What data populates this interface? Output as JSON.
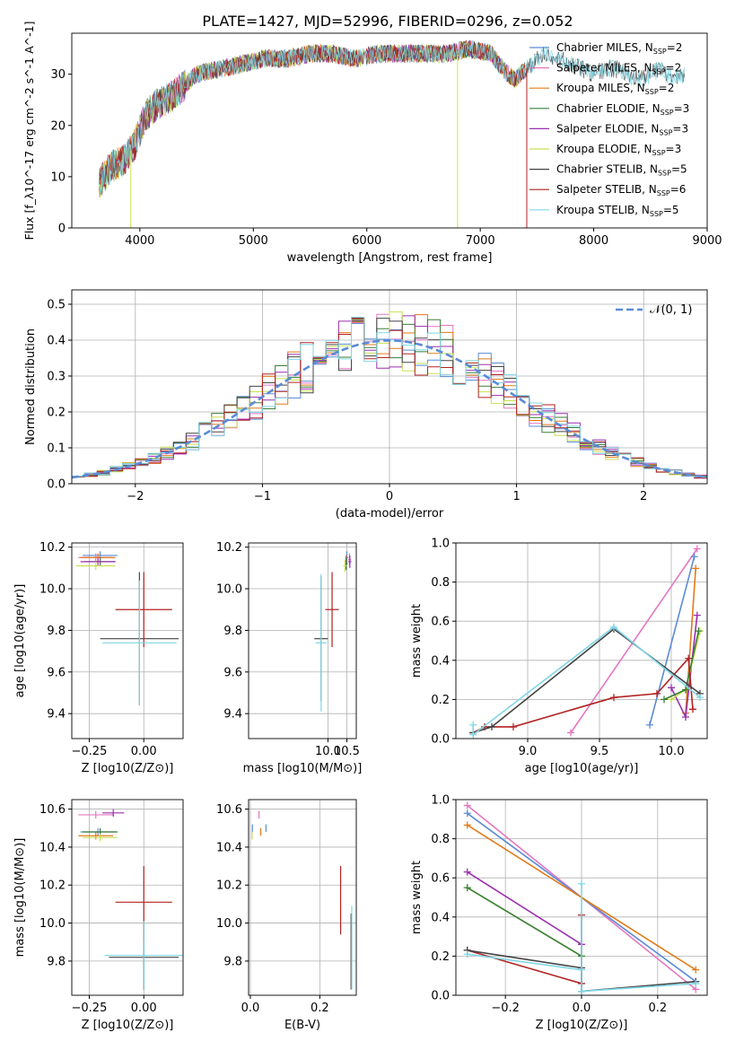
{
  "figure_title": "PLATE=1427, MJD=52996, FIBERID=0296, z=0.052",
  "colors": {
    "chabrier_miles": "#5b8bd6",
    "salpeter_miles": "#e377c2",
    "kroupa_miles": "#e07b1a",
    "chabrier_elodie": "#3a7f3a",
    "salpeter_elodie": "#9b2fae",
    "kroupa_elodie": "#c8e050",
    "chabrier_stelib": "#444444",
    "salpeter_stelib": "#b22222",
    "kroupa_stelib": "#7fd6e6",
    "gaussian": "#5b8bd6",
    "grid": "#b0b0b0"
  },
  "chart_data": [
    {
      "id": "spectrum",
      "type": "line",
      "xlabel": "wavelength [Angstrom, rest frame]",
      "ylabel": "Flux [f_λ10^-17 erg cm^-2 s^-1 A^-1]",
      "xlim": [
        3400,
        9000
      ],
      "ylim": [
        0,
        38
      ],
      "xticks": [
        "4000",
        "5000",
        "6000",
        "7000",
        "8000",
        "9000"
      ],
      "yticks": [
        "0",
        "10",
        "20",
        "30"
      ],
      "grid": false,
      "legend_position": "right",
      "legend": [
        {
          "label": "Chabrier MILES, N",
          "sub": "SSP",
          "tail": "=2",
          "color_key": "chabrier_miles"
        },
        {
          "label": "Salpeter MILES, N",
          "sub": "SSP",
          "tail": "=2",
          "color_key": "salpeter_miles"
        },
        {
          "label": "Kroupa MILES, N",
          "sub": "SSP",
          "tail": "=2",
          "color_key": "kroupa_miles"
        },
        {
          "label": "Chabrier ELODIE, N",
          "sub": "SSP",
          "tail": "=3",
          "color_key": "chabrier_elodie"
        },
        {
          "label": "Salpeter ELODIE, N",
          "sub": "SSP",
          "tail": "=3",
          "color_key": "salpeter_elodie"
        },
        {
          "label": "Kroupa ELODIE, N",
          "sub": "SSP",
          "tail": "=3",
          "color_key": "kroupa_elodie"
        },
        {
          "label": "Chabrier STELIB, N",
          "sub": "SSP",
          "tail": "=5",
          "color_key": "chabrier_stelib"
        },
        {
          "label": "Salpeter STELIB, N",
          "sub": "SSP",
          "tail": "=6",
          "color_key": "salpeter_stelib"
        },
        {
          "label": "Kroupa STELIB, N",
          "sub": "SSP",
          "tail": "=5",
          "color_key": "kroupa_stelib"
        }
      ],
      "envelope": {
        "wavelength": [
          3650,
          3750,
          3850,
          3950,
          4050,
          4150,
          4300,
          4500,
          4700,
          4900,
          5100,
          5300,
          5500,
          5700,
          5900,
          6100,
          6300,
          6500,
          6700,
          6900,
          7100,
          7200,
          7300,
          7400,
          7500,
          7600,
          7700,
          7800,
          7900,
          8000,
          8100,
          8200,
          8300,
          8400,
          8500,
          8600,
          8700,
          8800
        ],
        "flux": [
          9,
          12,
          13,
          16,
          22,
          24,
          26,
          30,
          31,
          32,
          33,
          33,
          34,
          34,
          33,
          34,
          34,
          34,
          34,
          35,
          34,
          31,
          29,
          31,
          33,
          34,
          33,
          32,
          31,
          30,
          31,
          31,
          30,
          29,
          30,
          31,
          29,
          30
        ]
      },
      "spikes": [
        {
          "wavelength": 3920,
          "to": 0
        },
        {
          "wavelength": 6800,
          "to": 0
        },
        {
          "wavelength": 7410,
          "to": 0
        }
      ]
    },
    {
      "id": "residuals",
      "type": "line",
      "xlabel": "(data-model)/error",
      "ylabel": "Normed distribution",
      "xlim": [
        -2.5,
        2.5
      ],
      "ylim": [
        0,
        0.54
      ],
      "xticks": [
        "−2",
        "−1",
        "0",
        "1",
        "2"
      ],
      "yticks": [
        "0.0",
        "0.1",
        "0.2",
        "0.3",
        "0.4",
        "0.5"
      ],
      "grid": true,
      "legend_position": "top-right",
      "legend_label": "𝒩(0, 1)",
      "gaussian": {
        "mean": 0,
        "sigma": 1
      }
    },
    {
      "id": "age-vs-Z",
      "type": "scatter",
      "xlabel": "Z [log10(Z/Z⊙)]",
      "ylabel": "age  [log10(age/yr)]",
      "xlim": [
        -0.33,
        0.18
      ],
      "ylim": [
        9.28,
        10.22
      ],
      "xticks": [
        "−0.25",
        "0.00"
      ],
      "yticks": [
        "9.4",
        "9.6",
        "9.8",
        "10.0",
        "10.2"
      ],
      "grid": true,
      "errorbars": [
        {
          "color_key": "chabrier_miles",
          "x": -0.2,
          "xerr": 0.08,
          "y": 10.16,
          "yerr": 0.02
        },
        {
          "color_key": "salpeter_miles",
          "x": -0.22,
          "xerr": 0.08,
          "y": 10.15,
          "yerr": 0.02
        },
        {
          "color_key": "kroupa_miles",
          "x": -0.21,
          "xerr": 0.08,
          "y": 10.15,
          "yerr": 0.02
        },
        {
          "color_key": "chabrier_elodie",
          "x": -0.2,
          "xerr": 0.07,
          "y": 10.13,
          "yerr": 0.02
        },
        {
          "color_key": "salpeter_elodie",
          "x": -0.21,
          "xerr": 0.08,
          "y": 10.13,
          "yerr": 0.02
        },
        {
          "color_key": "kroupa_elodie",
          "x": -0.22,
          "xerr": 0.09,
          "y": 10.11,
          "yerr": 0.02
        },
        {
          "color_key": "chabrier_stelib",
          "x": -0.02,
          "xerr": 0.18,
          "y": 9.76,
          "yerr": 0.32
        },
        {
          "color_key": "salpeter_stelib",
          "x": 0.0,
          "xerr": 0.13,
          "y": 9.9,
          "yerr": 0.18
        },
        {
          "color_key": "kroupa_stelib",
          "x": -0.02,
          "xerr": 0.17,
          "y": 9.74,
          "yerr": 0.3
        }
      ]
    },
    {
      "id": "age-vs-mass",
      "type": "scatter",
      "xlabel": "mass [log10(M/M⊙)]",
      "ylabel": "",
      "xlim": [
        7.9,
        10.75
      ],
      "ylim": [
        9.28,
        10.22
      ],
      "xticks": [
        "10.0",
        "10.5"
      ],
      "yticks": [
        "9.4",
        "9.6",
        "9.8",
        "10.0",
        "10.2"
      ],
      "grid": true,
      "errorbars": [
        {
          "color_key": "chabrier_miles",
          "x": 10.5,
          "xerr": 0.04,
          "y": 10.15,
          "yerr": 0.03
        },
        {
          "color_key": "salpeter_miles",
          "x": 10.57,
          "xerr": 0.04,
          "y": 10.14,
          "yerr": 0.03
        },
        {
          "color_key": "kroupa_miles",
          "x": 10.48,
          "xerr": 0.04,
          "y": 10.13,
          "yerr": 0.03
        },
        {
          "color_key": "chabrier_elodie",
          "x": 10.48,
          "xerr": 0.04,
          "y": 10.12,
          "yerr": 0.03
        },
        {
          "color_key": "salpeter_elodie",
          "x": 10.58,
          "xerr": 0.04,
          "y": 10.13,
          "yerr": 0.03
        },
        {
          "color_key": "kroupa_elodie",
          "x": 10.45,
          "xerr": 0.04,
          "y": 10.11,
          "yerr": 0.03
        },
        {
          "color_key": "chabrier_stelib",
          "x": 9.82,
          "xerr": 0.18,
          "y": 9.76,
          "yerr": 0.3
        },
        {
          "color_key": "salpeter_stelib",
          "x": 10.11,
          "xerr": 0.18,
          "y": 9.9,
          "yerr": 0.18
        },
        {
          "color_key": "kroupa_stelib",
          "x": 9.82,
          "xerr": 0.15,
          "y": 9.74,
          "yerr": 0.33
        }
      ]
    },
    {
      "id": "weight-vs-age",
      "type": "line",
      "xlabel": "age  [log10(age/yr)]",
      "ylabel": "mass weight",
      "xlim": [
        8.5,
        10.25
      ],
      "ylim": [
        0,
        1.0
      ],
      "xticks": [
        "9.0",
        "9.5",
        "10.0"
      ],
      "yticks": [
        "0.0",
        "0.2",
        "0.4",
        "0.6",
        "0.8",
        "1.0"
      ],
      "grid": true,
      "series": [
        {
          "color_key": "salpeter_miles",
          "x": [
            9.3,
            10.18
          ],
          "y": [
            0.03,
            0.97
          ]
        },
        {
          "color_key": "chabrier_miles",
          "x": [
            9.85,
            10.16
          ],
          "y": [
            0.07,
            0.93
          ]
        },
        {
          "color_key": "kroupa_miles",
          "x": [
            10.1,
            10.17
          ],
          "y": [
            0.13,
            0.87
          ]
        },
        {
          "color_key": "salpeter_elodie",
          "x": [
            10.0,
            10.1,
            10.18
          ],
          "y": [
            0.26,
            0.11,
            0.63
          ]
        },
        {
          "color_key": "kroupa_elodie",
          "x": [
            10.0,
            10.1,
            10.2
          ],
          "y": [
            0.2,
            0.25,
            0.55
          ]
        },
        {
          "color_key": "chabrier_elodie",
          "x": [
            9.95,
            10.1,
            10.19
          ],
          "y": [
            0.2,
            0.25,
            0.55
          ]
        },
        {
          "color_key": "salpeter_stelib",
          "x": [
            8.62,
            8.7,
            8.9,
            9.6,
            9.9,
            10.12,
            10.15
          ],
          "y": [
            0.03,
            0.06,
            0.06,
            0.21,
            0.23,
            0.41,
            0.15
          ]
        },
        {
          "color_key": "chabrier_stelib",
          "x": [
            8.62,
            8.75,
            9.6,
            10.2
          ],
          "y": [
            0.03,
            0.06,
            0.56,
            0.23
          ]
        },
        {
          "color_key": "kroupa_stelib",
          "x": [
            8.62,
            8.62,
            9.6,
            10.2
          ],
          "y": [
            0.07,
            0.02,
            0.57,
            0.21
          ]
        }
      ]
    },
    {
      "id": "mass-vs-Z",
      "type": "scatter",
      "xlabel": "Z [log10(Z/Z⊙)]",
      "ylabel": "mass [log10(M/M⊙)]",
      "xlim": [
        -0.33,
        0.18
      ],
      "ylim": [
        9.62,
        10.65
      ],
      "xticks": [
        "−0.25",
        "0.00"
      ],
      "yticks": [
        "9.8",
        "10.0",
        "10.2",
        "10.4",
        "10.6"
      ],
      "grid": true,
      "errorbars": [
        {
          "color_key": "salpeter_miles",
          "x": -0.22,
          "xerr": 0.08,
          "y": 10.57,
          "yerr": 0.02
        },
        {
          "color_key": "salpeter_elodie",
          "x": -0.14,
          "xerr": 0.05,
          "y": 10.58,
          "yerr": 0.02
        },
        {
          "color_key": "chabrier_miles",
          "x": -0.21,
          "xerr": 0.08,
          "y": 10.48,
          "yerr": 0.02
        },
        {
          "color_key": "kroupa_miles",
          "x": -0.22,
          "xerr": 0.08,
          "y": 10.46,
          "yerr": 0.02
        },
        {
          "color_key": "chabrier_elodie",
          "x": -0.2,
          "xerr": 0.08,
          "y": 10.48,
          "yerr": 0.02
        },
        {
          "color_key": "kroupa_elodie",
          "x": -0.2,
          "xerr": 0.08,
          "y": 10.45,
          "yerr": 0.02
        },
        {
          "color_key": "chabrier_stelib",
          "x": 0.0,
          "xerr": 0.16,
          "y": 9.82,
          "yerr": 0.17
        },
        {
          "color_key": "salpeter_stelib",
          "x": 0.0,
          "xerr": 0.13,
          "y": 10.11,
          "yerr": 0.19
        },
        {
          "color_key": "kroupa_stelib",
          "x": 0.0,
          "xerr": 0.18,
          "y": 9.83,
          "yerr": 0.18
        }
      ]
    },
    {
      "id": "mass-vs-ebv",
      "type": "scatter",
      "xlabel": "E(B-V)",
      "ylabel": "",
      "xlim": [
        -0.005,
        0.305
      ],
      "ylim": [
        9.62,
        10.65
      ],
      "xticks": [
        "0.0",
        "0.2"
      ],
      "yticks": [
        "9.8",
        "10.0",
        "10.2",
        "10.4",
        "10.6"
      ],
      "grid": true,
      "errorbars": [
        {
          "color_key": "salpeter_miles",
          "x": 0.025,
          "xerr": 0,
          "y": 10.57,
          "yerr": 0.02
        },
        {
          "color_key": "chabrier_miles",
          "x": 0.006,
          "xerr": 0,
          "y": 10.5,
          "yerr": 0.02
        },
        {
          "color_key": "kroupa_miles",
          "x": 0.03,
          "xerr": 0,
          "y": 10.48,
          "yerr": 0.02
        },
        {
          "color_key": "chabrier_miles",
          "x": 0.045,
          "xerr": 0,
          "y": 10.5,
          "yerr": 0.02
        },
        {
          "color_key": "kroupa_elodie",
          "x": 0.005,
          "xerr": 0,
          "y": 10.46,
          "yerr": 0.02
        },
        {
          "color_key": "salpeter_stelib",
          "x": 0.26,
          "xerr": 0,
          "y": 10.12,
          "yerr": 0.18
        },
        {
          "color_key": "chabrier_stelib",
          "x": 0.29,
          "xerr": 0,
          "y": 9.85,
          "yerr": 0.2
        },
        {
          "color_key": "kroupa_stelib",
          "x": 0.292,
          "xerr": 0,
          "y": 9.87,
          "yerr": 0.22
        }
      ]
    },
    {
      "id": "weight-vs-Z",
      "type": "line",
      "xlabel": "Z [log10(Z/Z⊙)]",
      "ylabel": "mass weight",
      "xlim": [
        -0.33,
        0.33
      ],
      "ylim": [
        0,
        1.0
      ],
      "xticks": [
        "−0.2",
        "0.0",
        "0.2"
      ],
      "yticks": [
        "0.0",
        "0.2",
        "0.4",
        "0.6",
        "0.8",
        "1.0"
      ],
      "grid": true,
      "series": [
        {
          "color_key": "salpeter_miles",
          "x": [
            -0.3,
            0.3
          ],
          "y": [
            0.97,
            0.03
          ]
        },
        {
          "color_key": "chabrier_miles",
          "x": [
            -0.3,
            0.3
          ],
          "y": [
            0.93,
            0.07
          ]
        },
        {
          "color_key": "kroupa_miles",
          "x": [
            -0.3,
            0.3
          ],
          "y": [
            0.87,
            0.13
          ]
        },
        {
          "color_key": "salpeter_elodie",
          "x": [
            -0.3,
            0.0
          ],
          "y": [
            0.63,
            0.26
          ]
        },
        {
          "color_key": "kroupa_elodie",
          "x": [
            -0.3,
            0.0
          ],
          "y": [
            0.55,
            0.2
          ]
        },
        {
          "color_key": "chabrier_elodie",
          "x": [
            -0.3,
            0.0
          ],
          "y": [
            0.55,
            0.2
          ]
        },
        {
          "color_key": "salpeter_stelib",
          "x": [
            -0.3,
            0.0,
            0.0
          ],
          "y": [
            0.23,
            0.06,
            0.41
          ]
        },
        {
          "color_key": "chabrier_stelib",
          "x": [
            -0.3,
            0.0,
            0.0,
            0.3
          ],
          "y": [
            0.23,
            0.14,
            0.02,
            0.07
          ]
        },
        {
          "color_key": "kroupa_stelib",
          "x": [
            -0.3,
            0.0,
            0.0,
            0.0,
            0.3
          ],
          "y": [
            0.21,
            0.13,
            0.57,
            0.02,
            0.06
          ]
        }
      ]
    }
  ]
}
